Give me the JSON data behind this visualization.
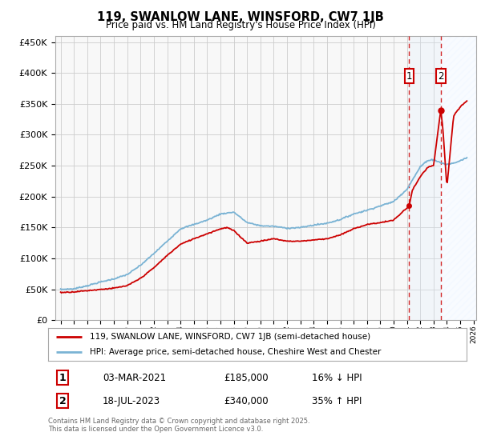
{
  "title": "119, SWANLOW LANE, WINSFORD, CW7 1JB",
  "subtitle": "Price paid vs. HM Land Registry's House Price Index (HPI)",
  "legend_line1": "119, SWANLOW LANE, WINSFORD, CW7 1JB (semi-detached house)",
  "legend_line2": "HPI: Average price, semi-detached house, Cheshire West and Chester",
  "point1_date": "03-MAR-2021",
  "point1_price": "£185,000",
  "point1_hpi": "16% ↓ HPI",
  "point1_year": 2021.17,
  "point1_value": 185000,
  "point2_date": "18-JUL-2023",
  "point2_price": "£340,000",
  "point2_hpi": "35% ↑ HPI",
  "point2_year": 2023.54,
  "point2_value": 340000,
  "footer": "Contains HM Land Registry data © Crown copyright and database right 2025.\nThis data is licensed under the Open Government Licence v3.0.",
  "hpi_color": "#7ab3d4",
  "price_color": "#cc0000",
  "shade_color": "#ddeeff",
  "grid_color": "#cccccc",
  "bg_color": "#f8f8f8",
  "xlim_start": 1994.6,
  "xlim_end": 2026.2,
  "ylim_max": 460000
}
